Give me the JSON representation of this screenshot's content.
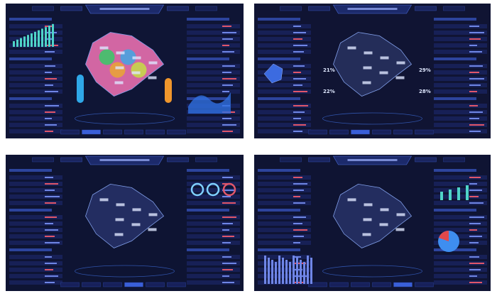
{
  "dashboard_2": {
    "stats": [
      "21%",
      "29%",
      "22%",
      "28%"
    ]
  }
}
